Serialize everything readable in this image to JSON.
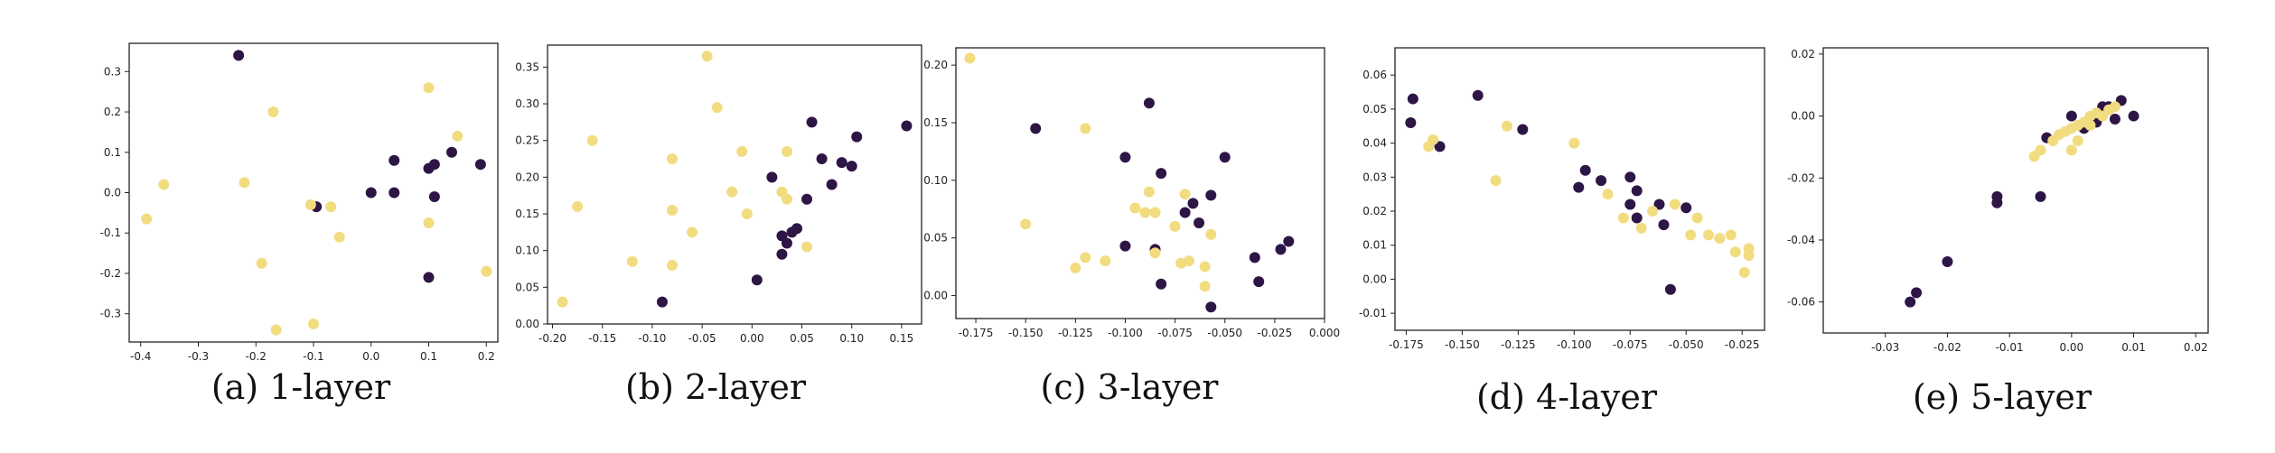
{
  "colors": {
    "dark": "#2d1646",
    "light": "#f2dc80",
    "axis": "#222222"
  },
  "chart_data": [
    {
      "type": "scatter",
      "caption": "(a) 1-layer",
      "xlim": [
        -0.42,
        0.22
      ],
      "ylim": [
        -0.37,
        0.37
      ],
      "xticks": [
        -0.4,
        -0.3,
        -0.2,
        -0.1,
        0.0,
        0.1,
        0.2
      ],
      "xtick_labels": [
        "-0.4",
        "-0.3",
        "-0.2",
        "-0.1",
        "0.0",
        "0.1",
        "0.2"
      ],
      "yticks": [
        -0.3,
        -0.2,
        -0.1,
        0.0,
        0.1,
        0.2,
        0.3
      ],
      "ytick_labels": [
        "-0.3",
        "-0.2",
        "-0.1",
        "0.0",
        "0.1",
        "0.2",
        "0.3"
      ],
      "series": [
        {
          "color": "dark",
          "points": [
            [
              -0.23,
              0.34
            ],
            [
              -0.095,
              -0.035
            ],
            [
              0.0,
              0.0
            ],
            [
              0.04,
              0.0
            ],
            [
              0.04,
              0.08
            ],
            [
              0.1,
              0.06
            ],
            [
              0.11,
              0.07
            ],
            [
              0.14,
              0.1
            ],
            [
              0.11,
              -0.01
            ],
            [
              0.19,
              0.07
            ],
            [
              0.1,
              -0.21
            ]
          ]
        },
        {
          "color": "light",
          "points": [
            [
              -0.39,
              -0.065
            ],
            [
              -0.36,
              0.02
            ],
            [
              -0.17,
              0.2
            ],
            [
              -0.22,
              0.025
            ],
            [
              -0.19,
              -0.175
            ],
            [
              -0.165,
              -0.34
            ],
            [
              -0.105,
              -0.03
            ],
            [
              -0.1,
              -0.325
            ],
            [
              -0.07,
              -0.035
            ],
            [
              -0.055,
              -0.11
            ],
            [
              0.1,
              0.26
            ],
            [
              0.1,
              -0.075
            ],
            [
              0.15,
              0.14
            ],
            [
              0.2,
              -0.195
            ]
          ]
        }
      ]
    },
    {
      "type": "scatter",
      "caption": "(b) 2-layer",
      "xlim": [
        -0.205,
        0.17
      ],
      "ylim": [
        0.0,
        0.38
      ],
      "xticks": [
        -0.2,
        -0.15,
        -0.1,
        -0.05,
        0.0,
        0.05,
        0.1,
        0.15
      ],
      "xtick_labels": [
        "-0.20",
        "-0.15",
        "-0.10",
        "-0.05",
        "0.00",
        "0.05",
        "0.10",
        "0.15"
      ],
      "yticks": [
        0.0,
        0.05,
        0.1,
        0.15,
        0.2,
        0.25,
        0.3,
        0.35
      ],
      "ytick_labels": [
        "0.00",
        "0.05",
        "0.10",
        "0.15",
        "0.20",
        "0.25",
        "0.30",
        "0.35"
      ],
      "series": [
        {
          "color": "dark",
          "points": [
            [
              -0.09,
              0.03
            ],
            [
              0.005,
              0.06
            ],
            [
              0.02,
              0.2
            ],
            [
              0.03,
              0.095
            ],
            [
              0.03,
              0.12
            ],
            [
              0.035,
              0.11
            ],
            [
              0.04,
              0.125
            ],
            [
              0.045,
              0.13
            ],
            [
              0.055,
              0.17
            ],
            [
              0.06,
              0.275
            ],
            [
              0.07,
              0.225
            ],
            [
              0.08,
              0.19
            ],
            [
              0.09,
              0.22
            ],
            [
              0.1,
              0.215
            ],
            [
              0.105,
              0.255
            ],
            [
              0.155,
              0.27
            ]
          ]
        },
        {
          "color": "light",
          "points": [
            [
              -0.19,
              0.03
            ],
            [
              -0.175,
              0.16
            ],
            [
              -0.16,
              0.25
            ],
            [
              -0.12,
              0.085
            ],
            [
              -0.08,
              0.225
            ],
            [
              -0.08,
              0.155
            ],
            [
              -0.08,
              0.08
            ],
            [
              -0.06,
              0.125
            ],
            [
              -0.045,
              0.365
            ],
            [
              -0.035,
              0.295
            ],
            [
              -0.02,
              0.18
            ],
            [
              -0.01,
              0.235
            ],
            [
              -0.005,
              0.15
            ],
            [
              0.03,
              0.18
            ],
            [
              0.035,
              0.17
            ],
            [
              0.035,
              0.235
            ],
            [
              0.055,
              0.105
            ]
          ]
        }
      ]
    },
    {
      "type": "scatter",
      "caption": "(c) 3-layer",
      "xlim": [
        -0.185,
        0.0
      ],
      "ylim": [
        -0.02,
        0.215
      ],
      "xticks": [
        -0.175,
        -0.15,
        -0.125,
        -0.1,
        -0.075,
        -0.05,
        -0.025,
        0.0
      ],
      "xtick_labels": [
        "-0.175",
        "-0.150",
        "-0.125",
        "-0.100",
        "-0.075",
        "-0.050",
        "-0.025",
        "0.000"
      ],
      "yticks": [
        0.0,
        0.05,
        0.1,
        0.15,
        0.2
      ],
      "ytick_labels": [
        "0.00",
        "0.05",
        "0.10",
        "0.15",
        "0.20"
      ],
      "series": [
        {
          "color": "dark",
          "points": [
            [
              -0.145,
              0.145
            ],
            [
              -0.1,
              0.12
            ],
            [
              -0.1,
              0.043
            ],
            [
              -0.088,
              0.167
            ],
            [
              -0.085,
              0.04
            ],
            [
              -0.082,
              0.106
            ],
            [
              -0.082,
              0.01
            ],
            [
              -0.07,
              0.072
            ],
            [
              -0.066,
              0.08
            ],
            [
              -0.063,
              0.063
            ],
            [
              -0.057,
              0.087
            ],
            [
              -0.057,
              -0.01
            ],
            [
              -0.05,
              0.12
            ],
            [
              -0.035,
              0.033
            ],
            [
              -0.033,
              0.012
            ],
            [
              -0.022,
              0.04
            ],
            [
              -0.018,
              0.047
            ]
          ]
        },
        {
          "color": "light",
          "points": [
            [
              -0.178,
              0.206
            ],
            [
              -0.15,
              0.062
            ],
            [
              -0.125,
              0.024
            ],
            [
              -0.12,
              0.145
            ],
            [
              -0.12,
              0.033
            ],
            [
              -0.11,
              0.03
            ],
            [
              -0.095,
              0.076
            ],
            [
              -0.09,
              0.072
            ],
            [
              -0.088,
              0.09
            ],
            [
              -0.085,
              0.072
            ],
            [
              -0.085,
              0.037
            ],
            [
              -0.075,
              0.06
            ],
            [
              -0.072,
              0.028
            ],
            [
              -0.07,
              0.088
            ],
            [
              -0.068,
              0.03
            ],
            [
              -0.06,
              0.025
            ],
            [
              -0.06,
              0.008
            ],
            [
              -0.057,
              0.053
            ]
          ]
        }
      ]
    },
    {
      "type": "scatter",
      "caption": "(d) 4-layer",
      "xlim": [
        -0.18,
        -0.015
      ],
      "ylim": [
        -0.015,
        0.068
      ],
      "xticks": [
        -0.175,
        -0.15,
        -0.125,
        -0.1,
        -0.075,
        -0.05,
        -0.025
      ],
      "xtick_labels": [
        "-0.175",
        "-0.150",
        "-0.125",
        "-0.100",
        "-0.075",
        "-0.050",
        "-0.025"
      ],
      "yticks": [
        -0.01,
        0.0,
        0.01,
        0.02,
        0.03,
        0.04,
        0.05,
        0.06
      ],
      "ytick_labels": [
        "-0.01",
        "0.00",
        "0.01",
        "0.02",
        "0.03",
        "0.04",
        "0.05",
        "0.06"
      ],
      "series": [
        {
          "color": "dark",
          "points": [
            [
              -0.172,
              0.053
            ],
            [
              -0.173,
              0.046
            ],
            [
              -0.16,
              0.039
            ],
            [
              -0.143,
              0.054
            ],
            [
              -0.123,
              0.044
            ],
            [
              -0.098,
              0.027
            ],
            [
              -0.095,
              0.032
            ],
            [
              -0.088,
              0.029
            ],
            [
              -0.075,
              0.03
            ],
            [
              -0.072,
              0.026
            ],
            [
              -0.075,
              0.022
            ],
            [
              -0.072,
              0.018
            ],
            [
              -0.062,
              0.022
            ],
            [
              -0.06,
              0.016
            ],
            [
              -0.05,
              0.021
            ],
            [
              -0.057,
              -0.003
            ]
          ]
        },
        {
          "color": "light",
          "points": [
            [
              -0.165,
              0.039
            ],
            [
              -0.163,
              0.041
            ],
            [
              -0.13,
              0.045
            ],
            [
              -0.135,
              0.029
            ],
            [
              -0.1,
              0.04
            ],
            [
              -0.085,
              0.025
            ],
            [
              -0.078,
              0.018
            ],
            [
              -0.07,
              0.015
            ],
            [
              -0.065,
              0.02
            ],
            [
              -0.055,
              0.022
            ],
            [
              -0.048,
              0.013
            ],
            [
              -0.045,
              0.018
            ],
            [
              -0.04,
              0.013
            ],
            [
              -0.035,
              0.012
            ],
            [
              -0.03,
              0.013
            ],
            [
              -0.028,
              0.008
            ],
            [
              -0.022,
              0.009
            ],
            [
              -0.022,
              0.007
            ],
            [
              -0.024,
              0.002
            ]
          ]
        }
      ]
    },
    {
      "type": "scatter",
      "caption": "(e) 5-layer",
      "xlim": [
        -0.04,
        0.022
      ],
      "ylim": [
        -0.07,
        0.022
      ],
      "xticks": [
        -0.03,
        -0.02,
        -0.01,
        0.0,
        0.01,
        0.02
      ],
      "xtick_labels": [
        "-0.03",
        "-0.02",
        "-0.01",
        "0.00",
        "0.01",
        "0.02"
      ],
      "yticks": [
        -0.06,
        -0.04,
        -0.02,
        0.0,
        0.02
      ],
      "ytick_labels": [
        "-0.06",
        "-0.04",
        "-0.02",
        "0.00",
        "0.02"
      ],
      "series": [
        {
          "color": "dark",
          "points": [
            [
              -0.026,
              -0.06
            ],
            [
              -0.025,
              -0.057
            ],
            [
              -0.02,
              -0.047
            ],
            [
              -0.012,
              -0.028
            ],
            [
              -0.012,
              -0.026
            ],
            [
              -0.005,
              -0.026
            ],
            [
              -0.004,
              -0.007
            ],
            [
              0.0,
              0.0
            ],
            [
              0.002,
              -0.004
            ],
            [
              0.004,
              -0.002
            ],
            [
              0.005,
              0.003
            ],
            [
              0.006,
              0.003
            ],
            [
              0.007,
              -0.001
            ],
            [
              0.008,
              0.005
            ],
            [
              0.01,
              0.0
            ]
          ]
        },
        {
          "color": "light",
          "points": [
            [
              -0.006,
              -0.013
            ],
            [
              -0.005,
              -0.011
            ],
            [
              -0.003,
              -0.008
            ],
            [
              -0.002,
              -0.006
            ],
            [
              -0.001,
              -0.005
            ],
            [
              0.0,
              -0.004
            ],
            [
              0.0,
              -0.011
            ],
            [
              0.001,
              -0.003
            ],
            [
              0.001,
              -0.008
            ],
            [
              0.002,
              -0.002
            ],
            [
              0.003,
              0.0
            ],
            [
              0.003,
              -0.003
            ],
            [
              0.004,
              0.001
            ],
            [
              0.005,
              0.0
            ],
            [
              0.006,
              0.002
            ],
            [
              0.007,
              0.003
            ]
          ]
        }
      ]
    }
  ]
}
